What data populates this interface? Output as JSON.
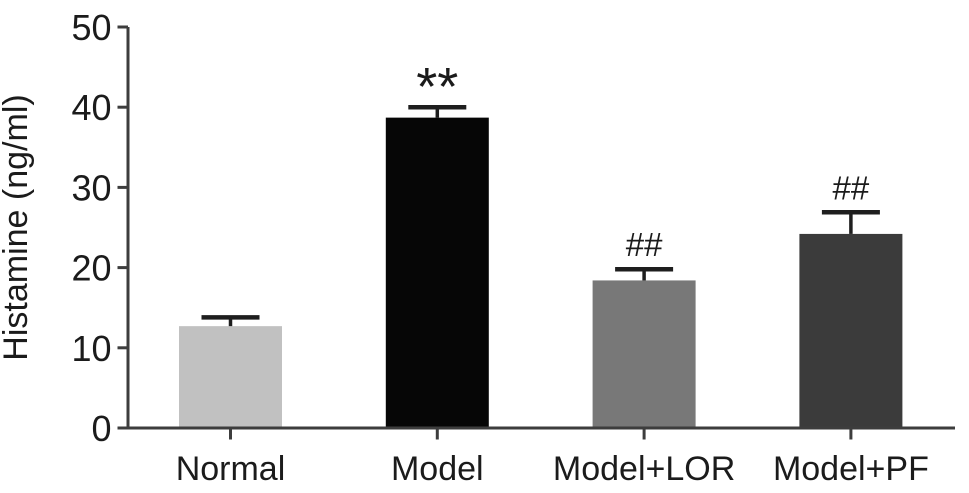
{
  "figure": {
    "background": "#ffffff"
  },
  "chart_data": {
    "type": "bar",
    "title": "",
    "xlabel": "",
    "ylabel": "Histamine (ng/ml)",
    "ylim": [
      0,
      50
    ],
    "yticks": [
      0,
      10,
      20,
      30,
      40,
      50
    ],
    "categories": [
      "Normal",
      "Model",
      "Model+LOR",
      "Model+PF"
    ],
    "values": [
      12.7,
      38.7,
      18.4,
      24.2
    ],
    "errors_upper": [
      1.1,
      1.3,
      1.4,
      2.7
    ],
    "significance_labels": [
      "",
      "**",
      "##",
      "##"
    ],
    "bar_colors": [
      "#c1c1c1",
      "#060606",
      "#787878",
      "#3b3b3b"
    ],
    "axis_color": "#3d3d3d",
    "text_color": "#1b1b1b",
    "error_bar_color": "#1e1e1e",
    "grid": false,
    "legend_position": "none"
  }
}
